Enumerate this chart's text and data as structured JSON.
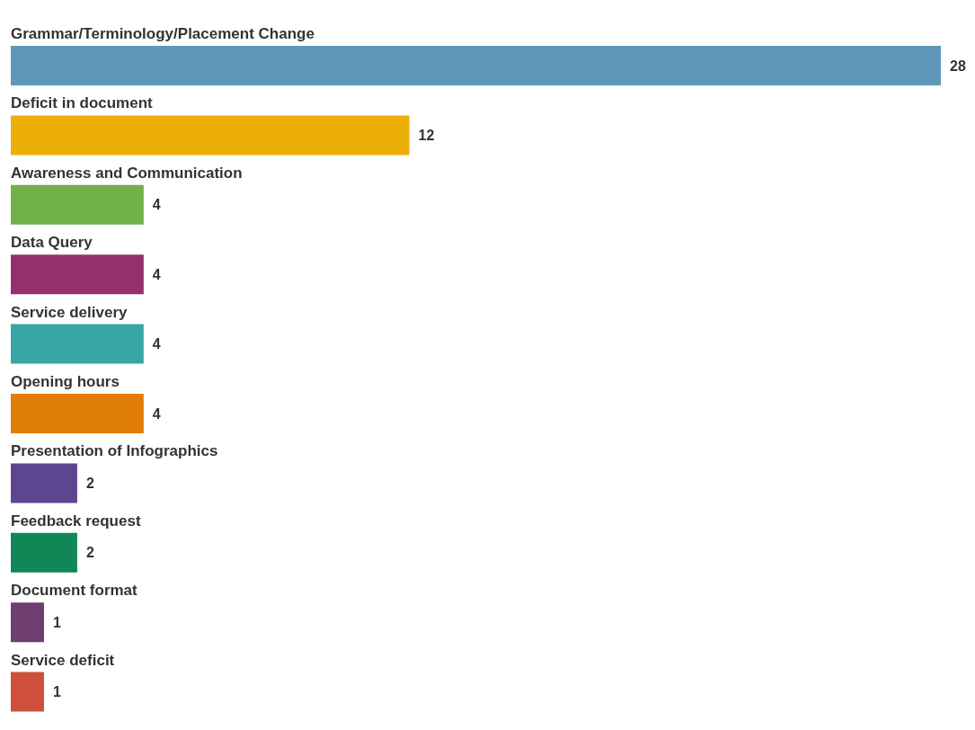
{
  "chart_data": {
    "type": "bar",
    "orientation": "horizontal",
    "data_labels": true,
    "categories": [
      "Grammar/Terminology/Placement Change",
      "Deficit in document",
      "Awareness and Communication",
      "Data Query",
      "Service delivery",
      "Opening hours",
      "Presentation of Infographics",
      "Feedback request",
      "Document format",
      "Service deficit"
    ],
    "values": [
      28,
      12,
      4,
      4,
      4,
      4,
      2,
      2,
      1,
      1
    ],
    "colors": [
      "#5f97b8",
      "#ecaf06",
      "#72b04a",
      "#94306c",
      "#38a6a4",
      "#e07d04",
      "#5d468f",
      "#118657",
      "#6e3e6f",
      "#cd4f3c"
    ]
  }
}
